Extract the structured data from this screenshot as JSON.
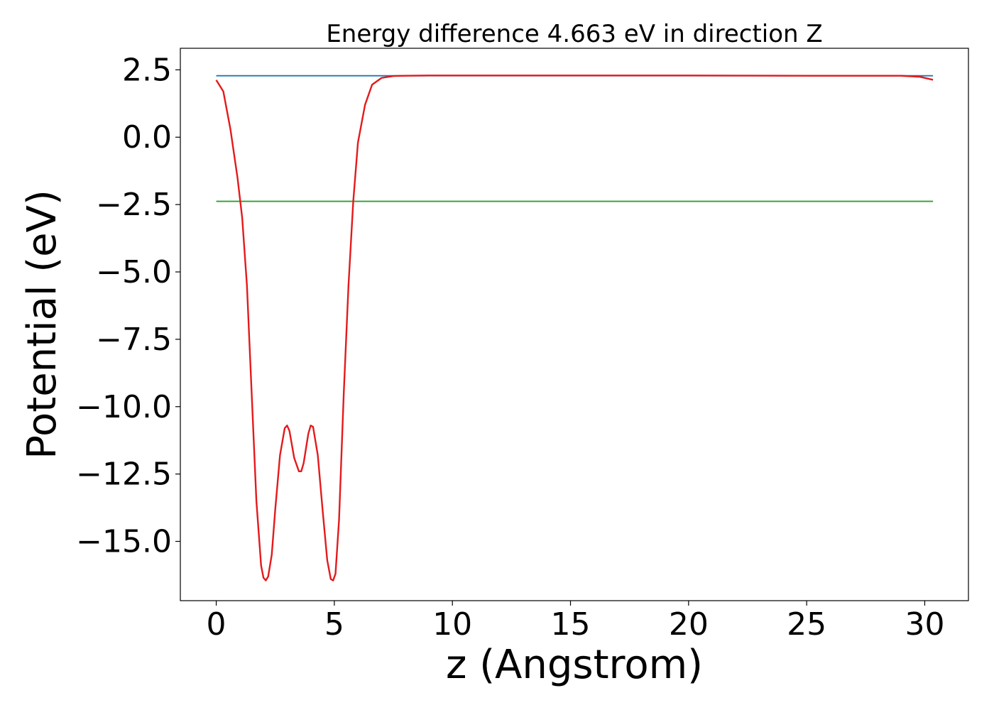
{
  "chart_data": {
    "type": "line",
    "title": "Energy difference 4.663 eV in direction Z",
    "xlabel": "z (Angstrom)",
    "ylabel": "Potential (eV)",
    "xlim": [
      -1.52,
      31.85
    ],
    "ylim": [
      -17.2,
      3.3
    ],
    "xticks": [
      0,
      5,
      10,
      15,
      20,
      25,
      30
    ],
    "xtick_labels": [
      "0",
      "5",
      "10",
      "15",
      "20",
      "25",
      "30"
    ],
    "yticks": [
      2.5,
      0.0,
      -2.5,
      -5.0,
      -7.5,
      -10.0,
      -12.5,
      -15.0
    ],
    "ytick_labels": [
      "2.5",
      "0.0",
      "−2.5",
      "−5.0",
      "−7.5",
      "−10.0",
      "−12.5",
      "−15.0"
    ],
    "grid": false,
    "legend": "none",
    "series": [
      {
        "color": "#1f77b4",
        "x": [
          0,
          30.35
        ],
        "y": [
          2.28,
          2.28
        ]
      },
      {
        "color": "#2ca02c",
        "x": [
          0,
          30.35
        ],
        "y": [
          -2.38,
          -2.38
        ]
      },
      {
        "color": "#e41a1c",
        "x": [
          0,
          0.3,
          0.6,
          0.9,
          1.1,
          1.3,
          1.5,
          1.7,
          1.9,
          2.0,
          2.1,
          2.2,
          2.35,
          2.5,
          2.7,
          2.9,
          3.0,
          3.1,
          3.3,
          3.5,
          3.6,
          3.7,
          3.9,
          4.0,
          4.1,
          4.3,
          4.5,
          4.7,
          4.85,
          4.95,
          5.05,
          5.2,
          5.4,
          5.6,
          5.8,
          6.0,
          6.3,
          6.6,
          7.0,
          7.5,
          8.0,
          9.0,
          10.0,
          15.0,
          20.0,
          25.0,
          29.0,
          29.8,
          30.35
        ],
        "y": [
          2.12,
          1.7,
          0.3,
          -1.5,
          -3.0,
          -5.5,
          -9.5,
          -13.5,
          -15.9,
          -16.35,
          -16.45,
          -16.3,
          -15.5,
          -13.8,
          -11.8,
          -10.8,
          -10.7,
          -10.9,
          -11.9,
          -12.4,
          -12.4,
          -12.1,
          -11.0,
          -10.7,
          -10.75,
          -11.8,
          -13.8,
          -15.7,
          -16.4,
          -16.45,
          -16.2,
          -14.2,
          -9.5,
          -5.5,
          -2.4,
          -0.2,
          1.2,
          1.95,
          2.2,
          2.27,
          2.28,
          2.29,
          2.29,
          2.29,
          2.29,
          2.28,
          2.28,
          2.24,
          2.13
        ]
      }
    ]
  }
}
